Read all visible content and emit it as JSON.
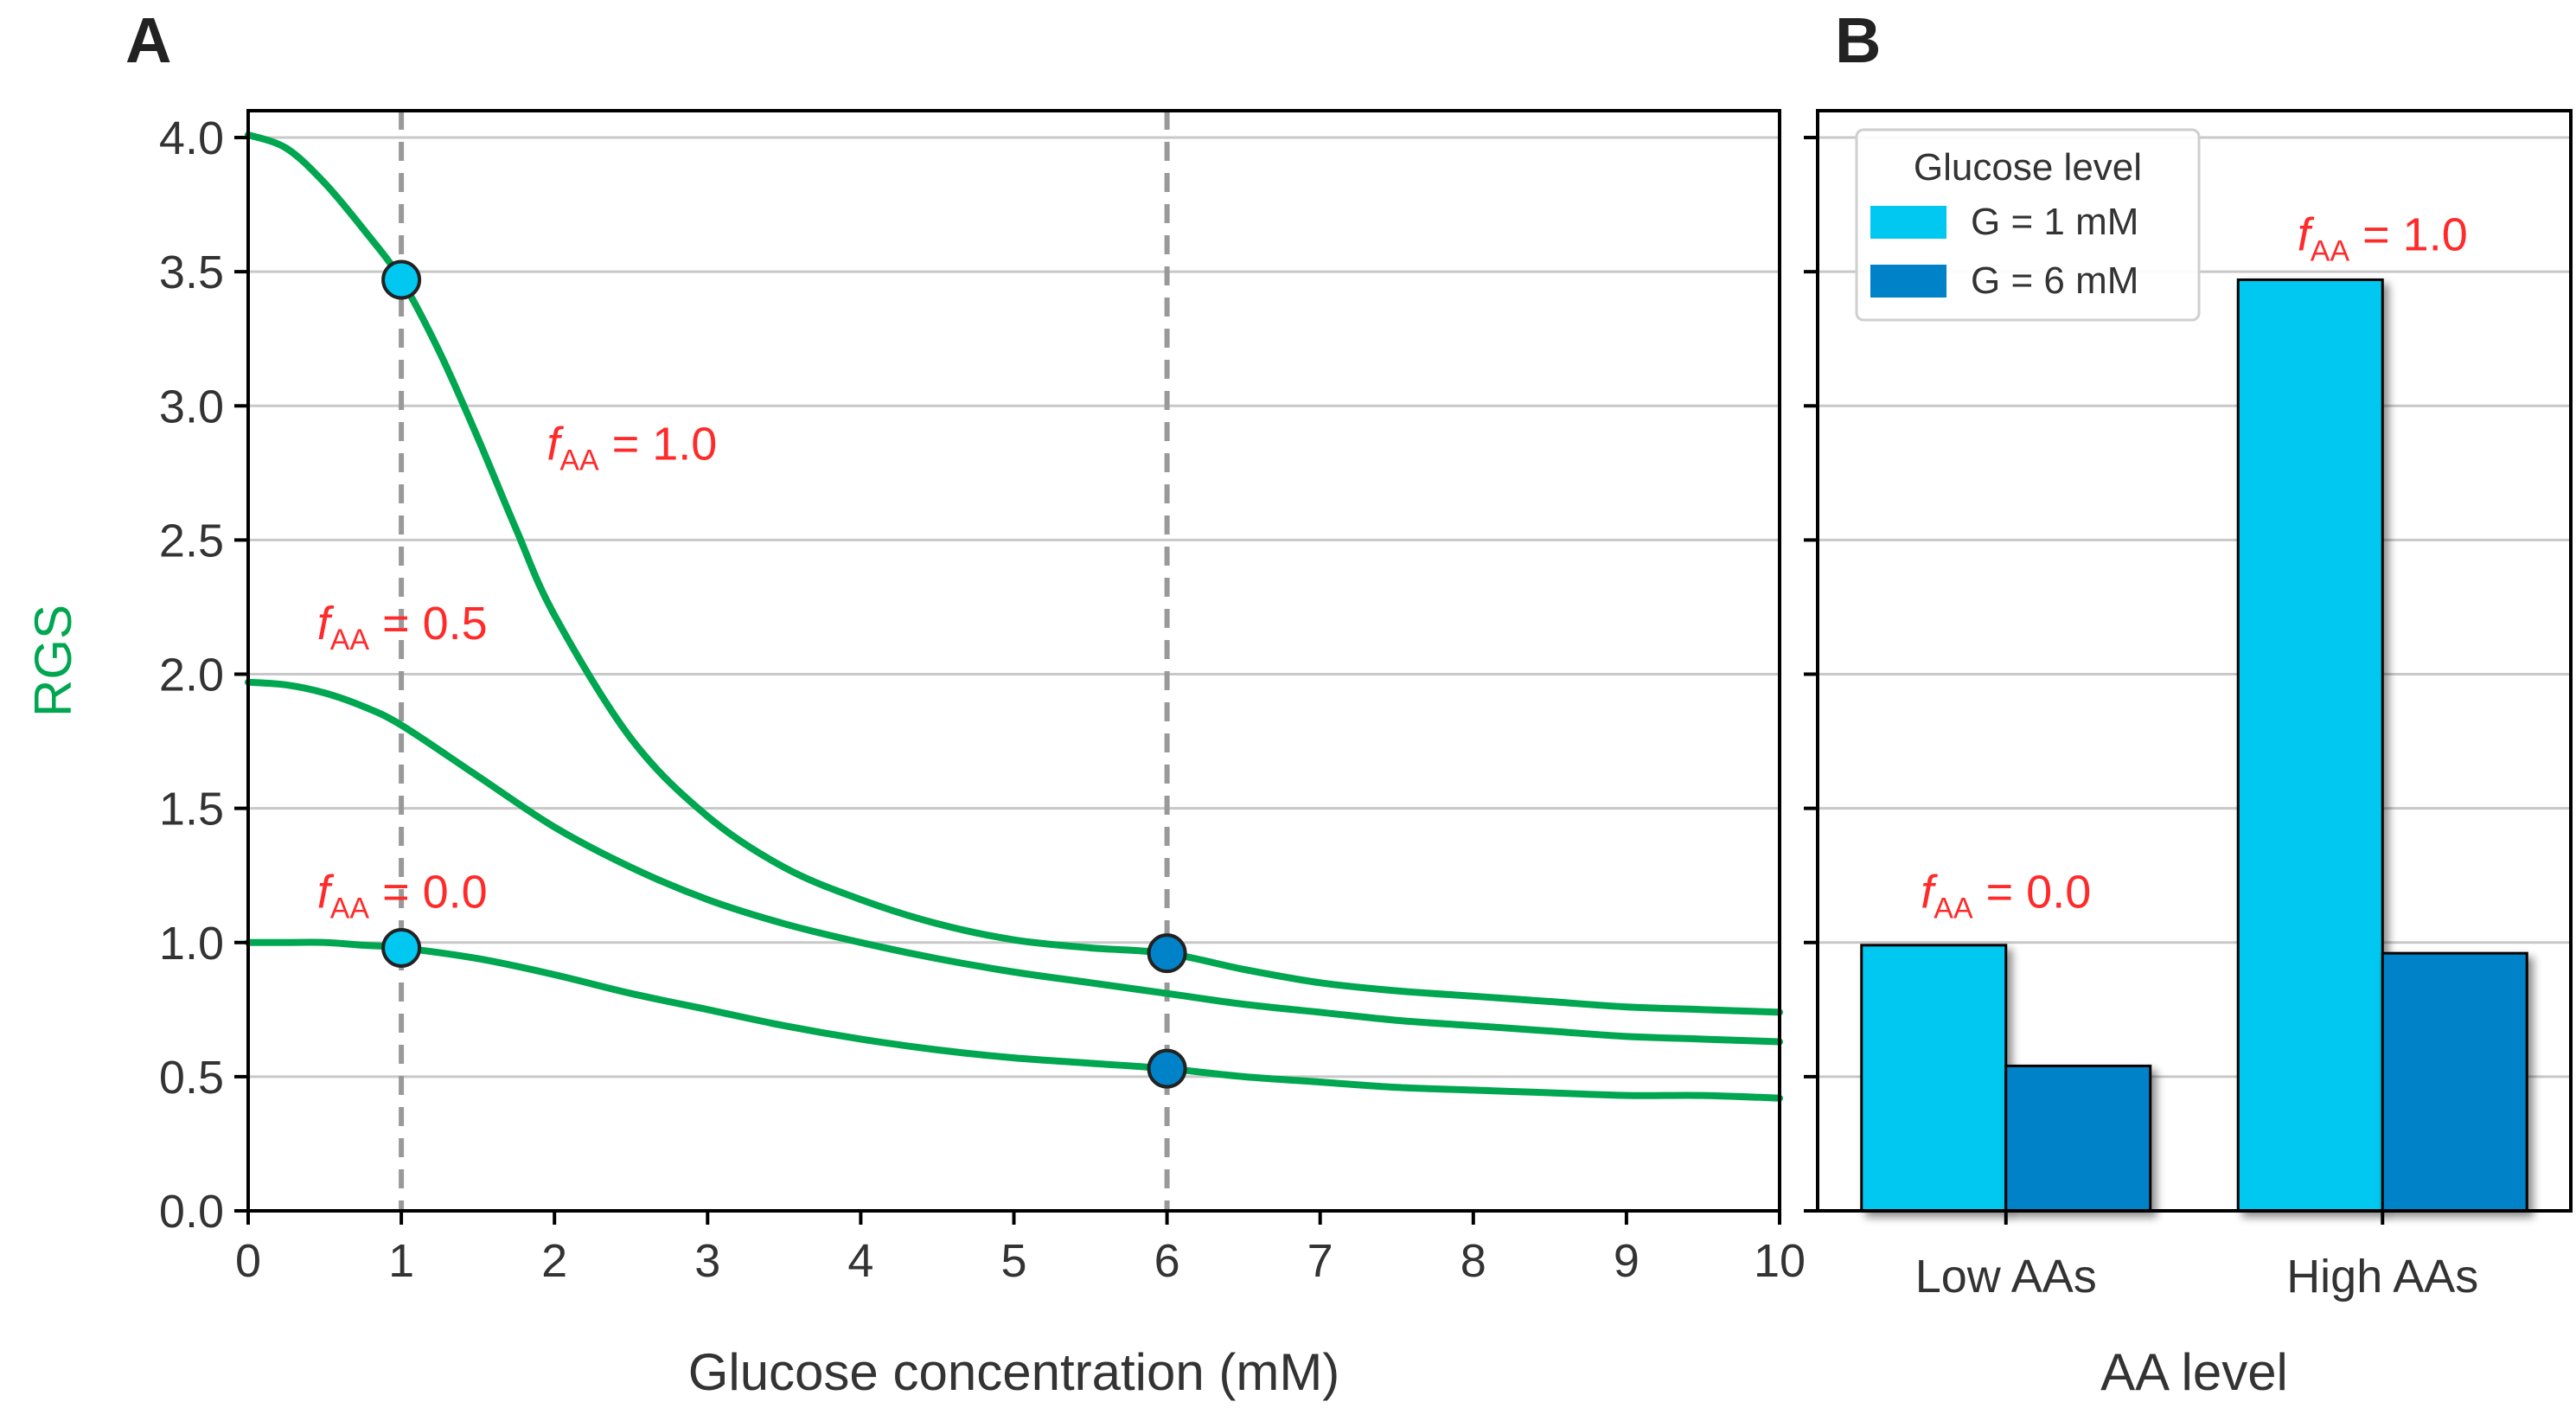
{
  "figure": {
    "panel_a_label": "A",
    "panel_b_label": "B"
  },
  "colors": {
    "curve": "#00a650",
    "annotation": "#ff2a2a",
    "g1": "#00c8f0",
    "g6": "#0082c8",
    "grid": "#c8c8c8",
    "vline": "#999999",
    "axis": "#000000",
    "text": "#333333"
  },
  "chart_data": [
    {
      "type": "line",
      "panel": "A",
      "title": "",
      "xlabel": "Glucose concentration (mM)",
      "ylabel": "RGS",
      "xlim": [
        0,
        10
      ],
      "ylim": [
        0,
        4.1
      ],
      "xticks": [
        0,
        1,
        2,
        3,
        4,
        5,
        6,
        7,
        8,
        9,
        10
      ],
      "yticks": [
        0.0,
        0.5,
        1.0,
        1.5,
        2.0,
        2.5,
        3.0,
        3.5,
        4.0
      ],
      "grid": "horizontal",
      "vlines": [
        1,
        6
      ],
      "series": [
        {
          "name": "fAA = 1.0",
          "annotation": {
            "f": "f",
            "sub": "AA",
            "rest": " = 1.0",
            "x": 1.95,
            "y": 2.8
          },
          "x": [
            0,
            0.25,
            0.5,
            0.75,
            1.0,
            1.25,
            1.5,
            1.75,
            2.0,
            2.5,
            3.0,
            3.5,
            4.0,
            4.5,
            5.0,
            5.5,
            6.0,
            6.5,
            7.0,
            7.5,
            8.0,
            8.5,
            9.0,
            9.5,
            10.0
          ],
          "values": [
            4.01,
            3.96,
            3.83,
            3.66,
            3.47,
            3.2,
            2.88,
            2.54,
            2.22,
            1.76,
            1.47,
            1.28,
            1.16,
            1.07,
            1.01,
            0.98,
            0.96,
            0.9,
            0.85,
            0.82,
            0.8,
            0.78,
            0.76,
            0.75,
            0.74
          ]
        },
        {
          "name": "fAA = 0.5",
          "annotation": {
            "f": "f",
            "sub": "AA",
            "rest": " = 0.5",
            "x": 0.45,
            "y": 2.13
          },
          "x": [
            0,
            0.25,
            0.5,
            0.75,
            1.0,
            1.5,
            2.0,
            2.5,
            3.0,
            3.5,
            4.0,
            4.5,
            5.0,
            5.5,
            6.0,
            6.5,
            7.0,
            7.5,
            8.0,
            8.5,
            9.0,
            9.5,
            10.0
          ],
          "values": [
            1.97,
            1.96,
            1.93,
            1.88,
            1.81,
            1.62,
            1.43,
            1.28,
            1.16,
            1.07,
            1.0,
            0.94,
            0.89,
            0.85,
            0.81,
            0.77,
            0.74,
            0.71,
            0.69,
            0.67,
            0.65,
            0.64,
            0.63
          ]
        },
        {
          "name": "fAA = 0.0",
          "annotation": {
            "f": "f",
            "sub": "AA",
            "rest": " = 0.0",
            "x": 0.45,
            "y": 1.13
          },
          "x": [
            0,
            0.25,
            0.5,
            0.75,
            1.0,
            1.5,
            2.0,
            2.5,
            3.0,
            3.5,
            4.0,
            4.5,
            5.0,
            5.5,
            6.0,
            6.5,
            7.0,
            7.5,
            8.0,
            8.5,
            9.0,
            9.5,
            10.0
          ],
          "values": [
            1.0,
            1.0,
            1.0,
            0.99,
            0.98,
            0.94,
            0.88,
            0.81,
            0.75,
            0.69,
            0.64,
            0.6,
            0.57,
            0.55,
            0.53,
            0.5,
            0.48,
            0.46,
            0.45,
            0.44,
            0.43,
            0.43,
            0.42
          ]
        }
      ],
      "markers": [
        {
          "x": 1,
          "y": 3.47,
          "color": "#00c8f0"
        },
        {
          "x": 1,
          "y": 0.98,
          "color": "#00c8f0"
        },
        {
          "x": 6,
          "y": 0.96,
          "color": "#0082c8"
        },
        {
          "x": 6,
          "y": 0.53,
          "color": "#0082c8"
        }
      ]
    },
    {
      "type": "bar",
      "panel": "B",
      "title": "",
      "xlabel": "AA level",
      "ylabel": "",
      "ylim": [
        0,
        4.1
      ],
      "yticks": [
        0.0,
        0.5,
        1.0,
        1.5,
        2.0,
        2.5,
        3.0,
        3.5,
        4.0
      ],
      "grid": "horizontal",
      "categories": [
        "Low AAs",
        "High AAs"
      ],
      "series": [
        {
          "name": "G = 1 mM",
          "values": [
            0.99,
            3.47
          ],
          "color": "#00c8f0"
        },
        {
          "name": "G = 6 mM",
          "values": [
            0.54,
            0.96
          ],
          "color": "#0082c8"
        }
      ],
      "legend": {
        "title": "Glucose level",
        "placement": "top-left"
      },
      "annotations": [
        {
          "f": "f",
          "sub": "AA",
          "rest": " = 0.0",
          "category": 0,
          "y": 1.13
        },
        {
          "f": "f",
          "sub": "AA",
          "rest": " = 1.0",
          "category": 1,
          "y": 3.58
        }
      ]
    }
  ]
}
